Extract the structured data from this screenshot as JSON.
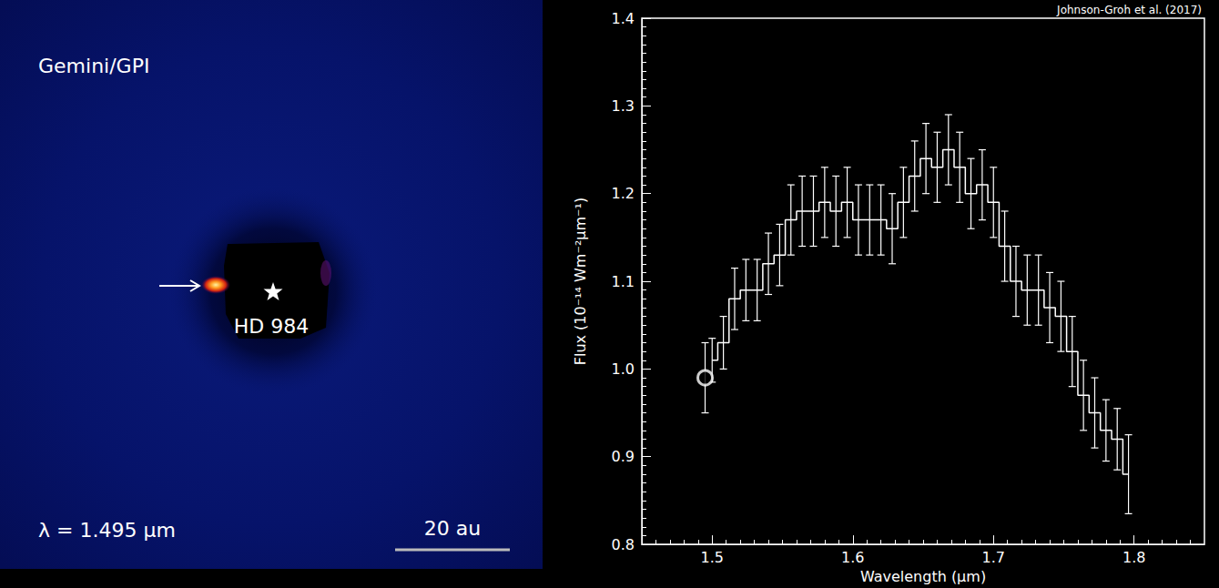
{
  "chart_data": {
    "type": "line",
    "source": "Johnson-Groh et al. (2017)",
    "x_label": "Wavelength (μm)",
    "y_label": "Flux (10⁻¹⁴ Wm⁻²μm⁻¹)",
    "xlim": [
      1.45,
      1.85
    ],
    "xticks": [
      1.5,
      1.6,
      1.7,
      1.8
    ],
    "ylim": [
      0.8,
      1.4
    ],
    "yticks": [
      0.8,
      0.9,
      {
        "value": 1,
        "label": "1.0"
      },
      1.1,
      1.2,
      1.3,
      1.4
    ],
    "grid": false,
    "series": [
      {
        "type": "line",
        "line_style": "step",
        "color": "#ffffff",
        "x": [
          1.5,
          1.508,
          1.516,
          1.524,
          1.532,
          1.54,
          1.548,
          1.556,
          1.564,
          1.572,
          1.58,
          1.588,
          1.596,
          1.604,
          1.612,
          1.62,
          1.628,
          1.636,
          1.644,
          1.652,
          1.66,
          1.668,
          1.676,
          1.684,
          1.692,
          1.7,
          1.708,
          1.716,
          1.724,
          1.732,
          1.74,
          1.748,
          1.756,
          1.764,
          1.772,
          1.78,
          1.788,
          1.796
        ],
        "values": [
          1.01,
          1.03,
          1.08,
          1.09,
          1.09,
          1.12,
          1.13,
          1.17,
          1.18,
          1.18,
          1.19,
          1.18,
          1.19,
          1.17,
          1.17,
          1.17,
          1.16,
          1.19,
          1.22,
          1.24,
          1.23,
          1.25,
          1.23,
          1.2,
          1.21,
          1.19,
          1.14,
          1.1,
          1.09,
          1.09,
          1.07,
          1.06,
          1.02,
          0.97,
          0.95,
          0.93,
          0.92,
          0.88
        ],
        "errors": [
          0.025,
          0.03,
          0.035,
          0.035,
          0.035,
          0.035,
          0.035,
          0.04,
          0.04,
          0.04,
          0.04,
          0.04,
          0.04,
          0.04,
          0.04,
          0.04,
          0.04,
          0.04,
          0.04,
          0.04,
          0.04,
          0.04,
          0.04,
          0.04,
          0.04,
          0.04,
          0.04,
          0.04,
          0.04,
          0.04,
          0.04,
          0.04,
          0.04,
          0.04,
          0.04,
          0.035,
          0.035,
          0.045
        ]
      },
      {
        "type": "scatter",
        "marker": "open_circle",
        "color": "#ffffff",
        "x": [
          1.495
        ],
        "values": [
          0.99
        ],
        "errors": [
          0.04
        ]
      }
    ]
  },
  "image_panel": {
    "title": "Gemini/GPI",
    "target": "HD 984",
    "wavelength_label": "λ = 1.495 μm",
    "scale_bar": "20 au"
  }
}
